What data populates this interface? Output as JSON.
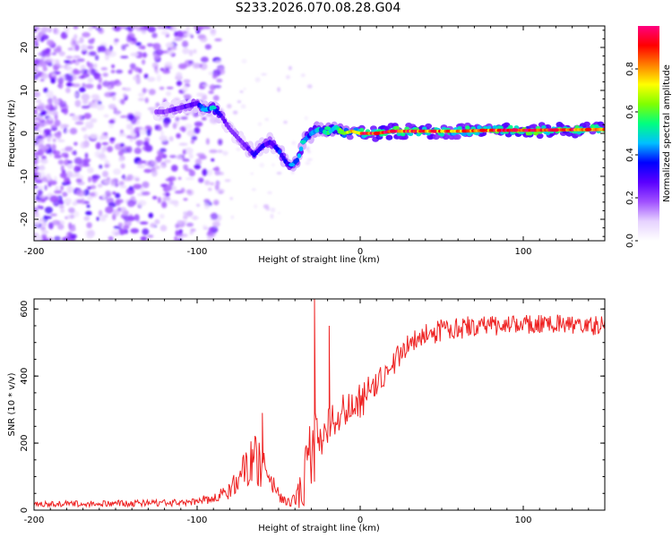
{
  "title": "S233.2026.070.08.28.G04",
  "chart_data": [
    {
      "type": "heatmap",
      "title": "S233.2026.070.08.28.G04",
      "xlabel": "Height of straight line (km)",
      "ylabel": "Frequency (Hz)",
      "xlim": [
        -200,
        150
      ],
      "ylim": [
        -25,
        25
      ],
      "xticks": [
        -200,
        -100,
        0,
        100
      ],
      "yticks": [
        -20,
        -10,
        0,
        10,
        20
      ],
      "colorbar": {
        "label": "Normalized spectral amplitude",
        "range": [
          0,
          1
        ],
        "ticks": [
          0.0,
          0.2,
          0.4,
          0.6,
          0.8
        ],
        "colors": [
          "#ffffff",
          "#e6d2ff",
          "#a050ff",
          "#5a00ff",
          "#0000ff",
          "#00c0ff",
          "#00ff80",
          "#80ff00",
          "#ffff00",
          "#ff8000",
          "#ff0000",
          "#ff0080"
        ]
      },
      "ridge": {
        "x": [
          -120,
          -110,
          -100,
          -95,
          -90,
          -85,
          -80,
          -75,
          -70,
          -65,
          -60,
          -55,
          -50,
          -45,
          -42,
          -38,
          -35,
          -30,
          -25,
          -20,
          -15,
          -10,
          -5,
          0,
          10,
          20,
          40,
          60,
          80,
          100,
          120,
          150
        ],
        "y": [
          5,
          6,
          7,
          5.5,
          6,
          4,
          1,
          -1,
          -3,
          -5,
          -3,
          -2,
          -4,
          -7,
          -7.5,
          -6,
          -2,
          0,
          1,
          0,
          1.5,
          0,
          0.5,
          0,
          0,
          0.5,
          0.5,
          0.5,
          0.7,
          0.7,
          0.8,
          0.9
        ],
        "amplitude": [
          0.2,
          0.25,
          0.3,
          0.4,
          0.45,
          0.3,
          0.2,
          0.2,
          0.25,
          0.3,
          0.3,
          0.3,
          0.35,
          0.35,
          0.35,
          0.4,
          0.45,
          0.4,
          0.45,
          0.5,
          0.5,
          0.6,
          0.7,
          0.85,
          0.9,
          0.9,
          0.85,
          0.8,
          0.85,
          0.95,
          0.9,
          0.85
        ]
      }
    },
    {
      "type": "line",
      "xlabel": "Height of straight line (km)",
      "ylabel": "SNR (10 * v/v)",
      "xlim": [
        -200,
        150
      ],
      "ylim": [
        0,
        630
      ],
      "xticks": [
        -200,
        -100,
        0,
        100
      ],
      "yticks": [
        0,
        200,
        400,
        600
      ],
      "series": [
        {
          "name": "SNR",
          "color": "#ee2222",
          "x": [
            -200,
            -150,
            -110,
            -90,
            -80,
            -75,
            -70,
            -65,
            -60,
            -55,
            -50,
            -45,
            -40,
            -38,
            -35,
            -32,
            -30,
            -28,
            -25,
            -22,
            -20,
            -15,
            -10,
            -5,
            0,
            5,
            10,
            15,
            20,
            25,
            30,
            40,
            50,
            60,
            80,
            100,
            120,
            150
          ],
          "mean": [
            18,
            20,
            22,
            35,
            55,
            90,
            120,
            150,
            140,
            90,
            45,
            25,
            30,
            45,
            80,
            130,
            160,
            180,
            210,
            230,
            250,
            280,
            300,
            320,
            330,
            350,
            380,
            410,
            440,
            470,
            500,
            520,
            540,
            545,
            550,
            555,
            555,
            550
          ],
          "amp": [
            8,
            10,
            10,
            15,
            25,
            40,
            60,
            80,
            70,
            40,
            20,
            12,
            20,
            40,
            80,
            110,
            110,
            110,
            90,
            90,
            70,
            60,
            50,
            50,
            60,
            50,
            45,
            40,
            40,
            40,
            35,
            35,
            35,
            35,
            30,
            30,
            30,
            30
          ]
        }
      ],
      "spikes": [
        {
          "x": -60,
          "y": 290
        },
        {
          "x": -28,
          "y": 630
        },
        {
          "x": -19,
          "y": 550
        }
      ]
    }
  ]
}
